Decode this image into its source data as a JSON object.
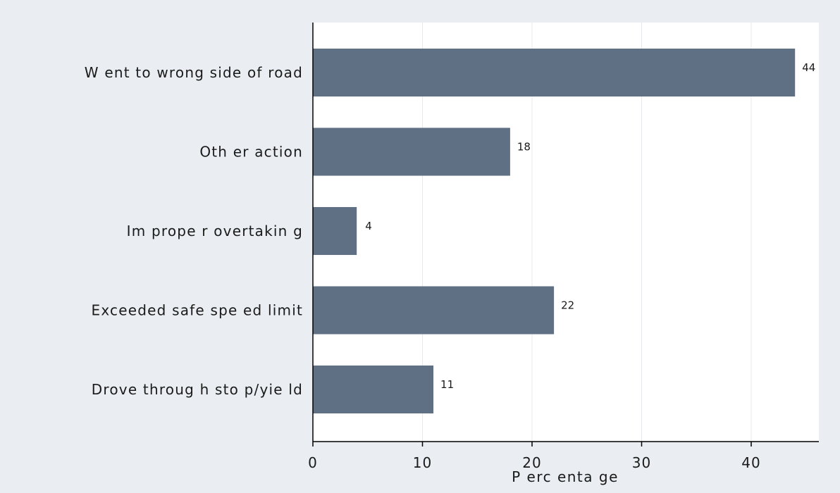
{
  "colors": {
    "outer_background": "#eaeef2",
    "plot_background": "#ffffff",
    "bar_fill": "#5f6f84",
    "gridline": "#e6e9ec",
    "axis": "#000000"
  },
  "chart_data": {
    "type": "bar",
    "orientation": "horizontal",
    "categories": [
      "W ent to wrong side of road",
      "Oth er action",
      "Im prope r overtakin g",
      "Exceeded safe spe ed limit",
      "Drove throug h sto p/yie ld"
    ],
    "values": [
      44,
      18,
      4,
      22,
      11
    ],
    "value_labels": [
      "44",
      "18",
      "4",
      "22",
      "11"
    ],
    "xlabel": "P erc enta ge",
    "ylabel": "",
    "title": "",
    "xlim": [
      0,
      46
    ],
    "xticks": [
      0,
      10,
      20,
      30,
      40
    ],
    "xtick_labels": [
      "0",
      "10",
      "20",
      "30",
      "40"
    ],
    "grid": "vertical",
    "legend": "none"
  }
}
